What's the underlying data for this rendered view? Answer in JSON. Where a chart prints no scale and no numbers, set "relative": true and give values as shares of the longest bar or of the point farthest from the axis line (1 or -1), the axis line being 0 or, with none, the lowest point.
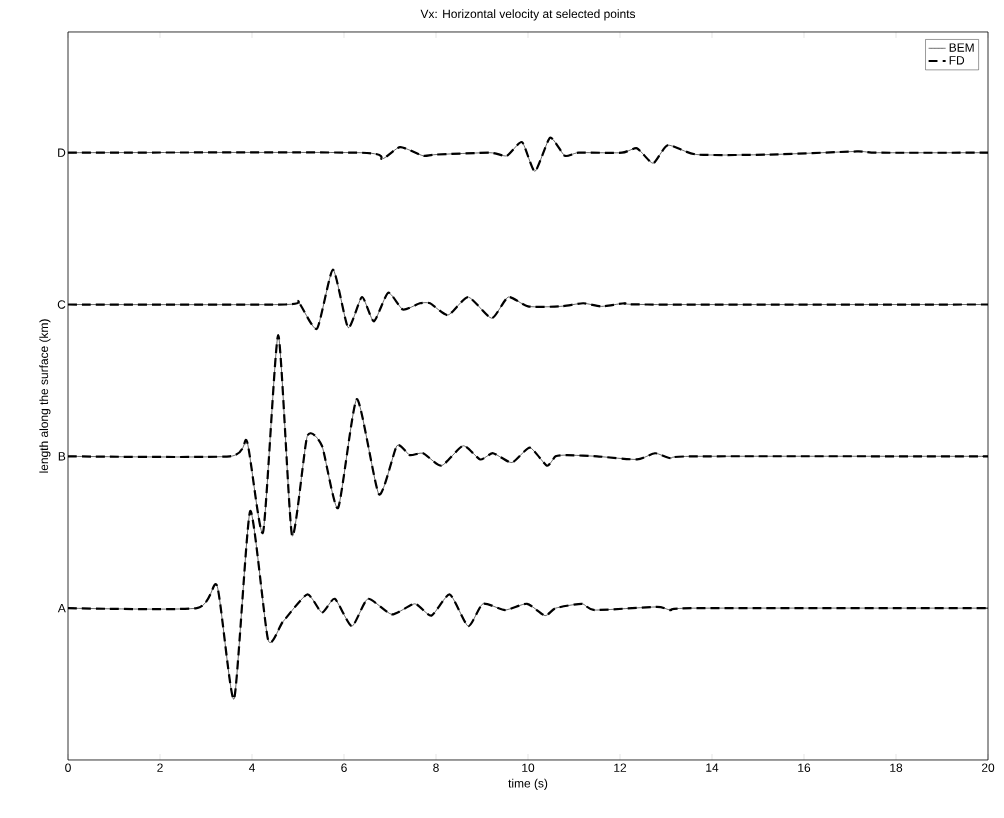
{
  "chart_data": {
    "type": "line",
    "relative": true,
    "title": "Vx: Horizontal velocity at selected points",
    "xlabel": "time (s)",
    "ylabel": "length along the surface (km)",
    "xlim": [
      0,
      20
    ],
    "xticks": [
      0,
      2,
      4,
      6,
      8,
      10,
      12,
      14,
      16,
      18,
      20
    ],
    "annotations": [
      "A",
      "B",
      "C",
      "D"
    ],
    "legend": "top right",
    "grid": false,
    "series": [
      {
        "name": "BEM",
        "color": "#000000",
        "line_style": "solid",
        "x": [
          0,
          2.8,
          3.24,
          3.61,
          3.96,
          4.35,
          4.67,
          5.2,
          5.52,
          5.8,
          6.17,
          6.52,
          7.04,
          7.54,
          7.9,
          8.3,
          8.7,
          9.02,
          9.5,
          9.98,
          10.37,
          10.6,
          11.17,
          11.45,
          12.8,
          13.1,
          13.6,
          20
        ],
        "values": [
          0.244,
          0.244,
          0.28,
          0.098,
          0.4,
          0.193,
          0.222,
          0.266,
          0.237,
          0.259,
          0.215,
          0.259,
          0.234,
          0.251,
          0.232,
          0.266,
          0.215,
          0.251,
          0.241,
          0.251,
          0.232,
          0.244,
          0.251,
          0.241,
          0.246,
          0.241,
          0.244,
          0.244
        ]
      },
      {
        "name": "FD",
        "color": "#000000",
        "line_style": "dashed",
        "x": [
          0,
          2.8,
          3.24,
          3.61,
          3.96,
          4.35,
          4.67,
          5.2,
          5.52,
          5.8,
          6.17,
          6.52,
          7.04,
          7.54,
          7.9,
          8.3,
          8.7,
          9.02,
          9.5,
          9.98,
          10.37,
          10.6,
          11.17,
          11.45,
          12.8,
          13.1,
          13.6,
          20
        ],
        "values": [
          0.244,
          0.244,
          0.28,
          0.098,
          0.4,
          0.193,
          0.222,
          0.266,
          0.237,
          0.259,
          0.215,
          0.259,
          0.234,
          0.251,
          0.232,
          0.266,
          0.215,
          0.251,
          0.241,
          0.251,
          0.232,
          0.244,
          0.251,
          0.241,
          0.246,
          0.241,
          0.244,
          0.244
        ]
      },
      {
        "color": "#000000",
        "line_style": "solid",
        "x": [
          0,
          3.52,
          3.89,
          4.24,
          4.57,
          4.87,
          5.2,
          5.52,
          5.87,
          6.28,
          6.76,
          7.15,
          7.43,
          7.72,
          8.12,
          8.59,
          8.96,
          9.24,
          9.65,
          10.04,
          10.41,
          10.6,
          10.85,
          11.5,
          12.37,
          12.76,
          13.1,
          13.6,
          20
        ],
        "values": [
          0.488,
          0.488,
          0.512,
          0.366,
          0.683,
          0.361,
          0.52,
          0.505,
          0.405,
          0.58,
          0.427,
          0.505,
          0.49,
          0.493,
          0.473,
          0.505,
          0.483,
          0.493,
          0.478,
          0.502,
          0.473,
          0.488,
          0.49,
          0.488,
          0.483,
          0.493,
          0.485,
          0.488,
          0.488
        ]
      },
      {
        "color": "#000000",
        "line_style": "dashed",
        "x": [
          0,
          3.52,
          3.89,
          4.24,
          4.57,
          4.87,
          5.2,
          5.52,
          5.87,
          6.28,
          6.76,
          7.15,
          7.43,
          7.72,
          8.12,
          8.59,
          8.96,
          9.24,
          9.65,
          10.04,
          10.41,
          10.6,
          10.85,
          11.5,
          12.37,
          12.76,
          13.1,
          13.6,
          20
        ],
        "values": [
          0.488,
          0.488,
          0.512,
          0.366,
          0.683,
          0.361,
          0.52,
          0.505,
          0.405,
          0.58,
          0.427,
          0.505,
          0.49,
          0.493,
          0.473,
          0.505,
          0.483,
          0.493,
          0.478,
          0.502,
          0.473,
          0.488,
          0.49,
          0.488,
          0.483,
          0.493,
          0.485,
          0.488,
          0.488
        ]
      },
      {
        "color": "#000000",
        "line_style": "solid",
        "x": [
          0,
          4.72,
          5.0,
          5.41,
          5.76,
          6.09,
          6.39,
          6.65,
          6.96,
          7.28,
          7.65,
          7.87,
          8.26,
          8.7,
          9.21,
          9.57,
          10.0,
          10.7,
          11.2,
          11.6,
          12.1,
          12.6,
          20
        ],
        "values": [
          0.732,
          0.732,
          0.737,
          0.693,
          0.788,
          0.695,
          0.744,
          0.705,
          0.751,
          0.724,
          0.734,
          0.734,
          0.715,
          0.744,
          0.71,
          0.744,
          0.729,
          0.729,
          0.734,
          0.729,
          0.734,
          0.732,
          0.732
        ]
      },
      {
        "color": "#000000",
        "line_style": "dashed",
        "x": [
          0,
          4.72,
          5.0,
          5.41,
          5.76,
          6.09,
          6.39,
          6.65,
          6.96,
          7.28,
          7.65,
          7.87,
          8.26,
          8.7,
          9.21,
          9.57,
          10.0,
          10.7,
          11.2,
          11.6,
          12.1,
          12.6,
          20
        ],
        "values": [
          0.732,
          0.732,
          0.737,
          0.693,
          0.788,
          0.695,
          0.744,
          0.705,
          0.751,
          0.724,
          0.734,
          0.734,
          0.715,
          0.744,
          0.71,
          0.744,
          0.729,
          0.729,
          0.734,
          0.729,
          0.734,
          0.732,
          0.732
        ]
      },
      {
        "color": "#000000",
        "line_style": "solid",
        "x": [
          0,
          6.35,
          6.83,
          7.22,
          7.72,
          8.0,
          9.17,
          9.54,
          9.87,
          10.15,
          10.48,
          10.8,
          11.1,
          12.04,
          12.37,
          12.72,
          13.04,
          13.67,
          15.26,
          17.15,
          17.6,
          20
        ],
        "values": [
          0.976,
          0.976,
          0.966,
          0.985,
          0.971,
          0.973,
          0.976,
          0.971,
          0.993,
          0.946,
          1,
          0.971,
          0.976,
          0.976,
          0.983,
          0.959,
          0.988,
          0.973,
          0.973,
          0.978,
          0.976,
          0.976
        ]
      },
      {
        "color": "#000000",
        "line_style": "dashed",
        "x": [
          0,
          6.35,
          6.83,
          7.22,
          7.72,
          8.0,
          9.17,
          9.54,
          9.87,
          10.15,
          10.48,
          10.8,
          11.1,
          12.04,
          12.37,
          12.72,
          13.04,
          13.67,
          15.26,
          17.15,
          17.6,
          20
        ],
        "values": [
          0.976,
          0.976,
          0.966,
          0.985,
          0.971,
          0.973,
          0.976,
          0.971,
          0.993,
          0.946,
          1,
          0.971,
          0.976,
          0.976,
          0.983,
          0.959,
          0.988,
          0.973,
          0.973,
          0.978,
          0.976,
          0.976
        ]
      }
    ]
  }
}
